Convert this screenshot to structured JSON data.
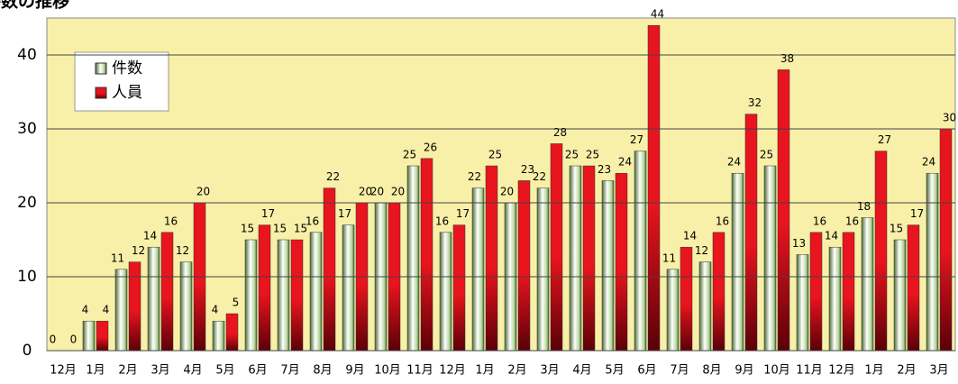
{
  "chart_data": {
    "type": "bar",
    "title": "件数の推移",
    "categories": [
      "12月",
      "1月",
      "2月",
      "3月",
      "4月",
      "5月",
      "6月",
      "7月",
      "8月",
      "9月",
      "10月",
      "11月",
      "12月",
      "1月",
      "2月",
      "3月",
      "4月",
      "5月",
      "6月",
      "7月",
      "8月",
      "9月",
      "10月",
      "11月",
      "12月",
      "1月",
      "2月",
      "3月"
    ],
    "series": [
      {
        "name": "件数",
        "color": "#b8d8a0",
        "values": [
          0,
          4,
          11,
          14,
          12,
          4,
          15,
          15,
          16,
          17,
          20,
          25,
          16,
          22,
          20,
          22,
          25,
          23,
          27,
          11,
          12,
          24,
          25,
          13,
          14,
          18,
          15,
          24
        ]
      },
      {
        "name": "人員",
        "color": "#e8141e",
        "values": [
          0,
          4,
          12,
          16,
          20,
          5,
          17,
          15,
          22,
          20,
          20,
          26,
          17,
          25,
          23,
          28,
          25,
          24,
          44,
          14,
          16,
          32,
          38,
          16,
          16,
          27,
          17,
          30
        ]
      }
    ],
    "ylim": [
      0,
      45
    ],
    "yticks": [
      0,
      10,
      20,
      30,
      40
    ],
    "grid": true,
    "legend": "top-left"
  }
}
